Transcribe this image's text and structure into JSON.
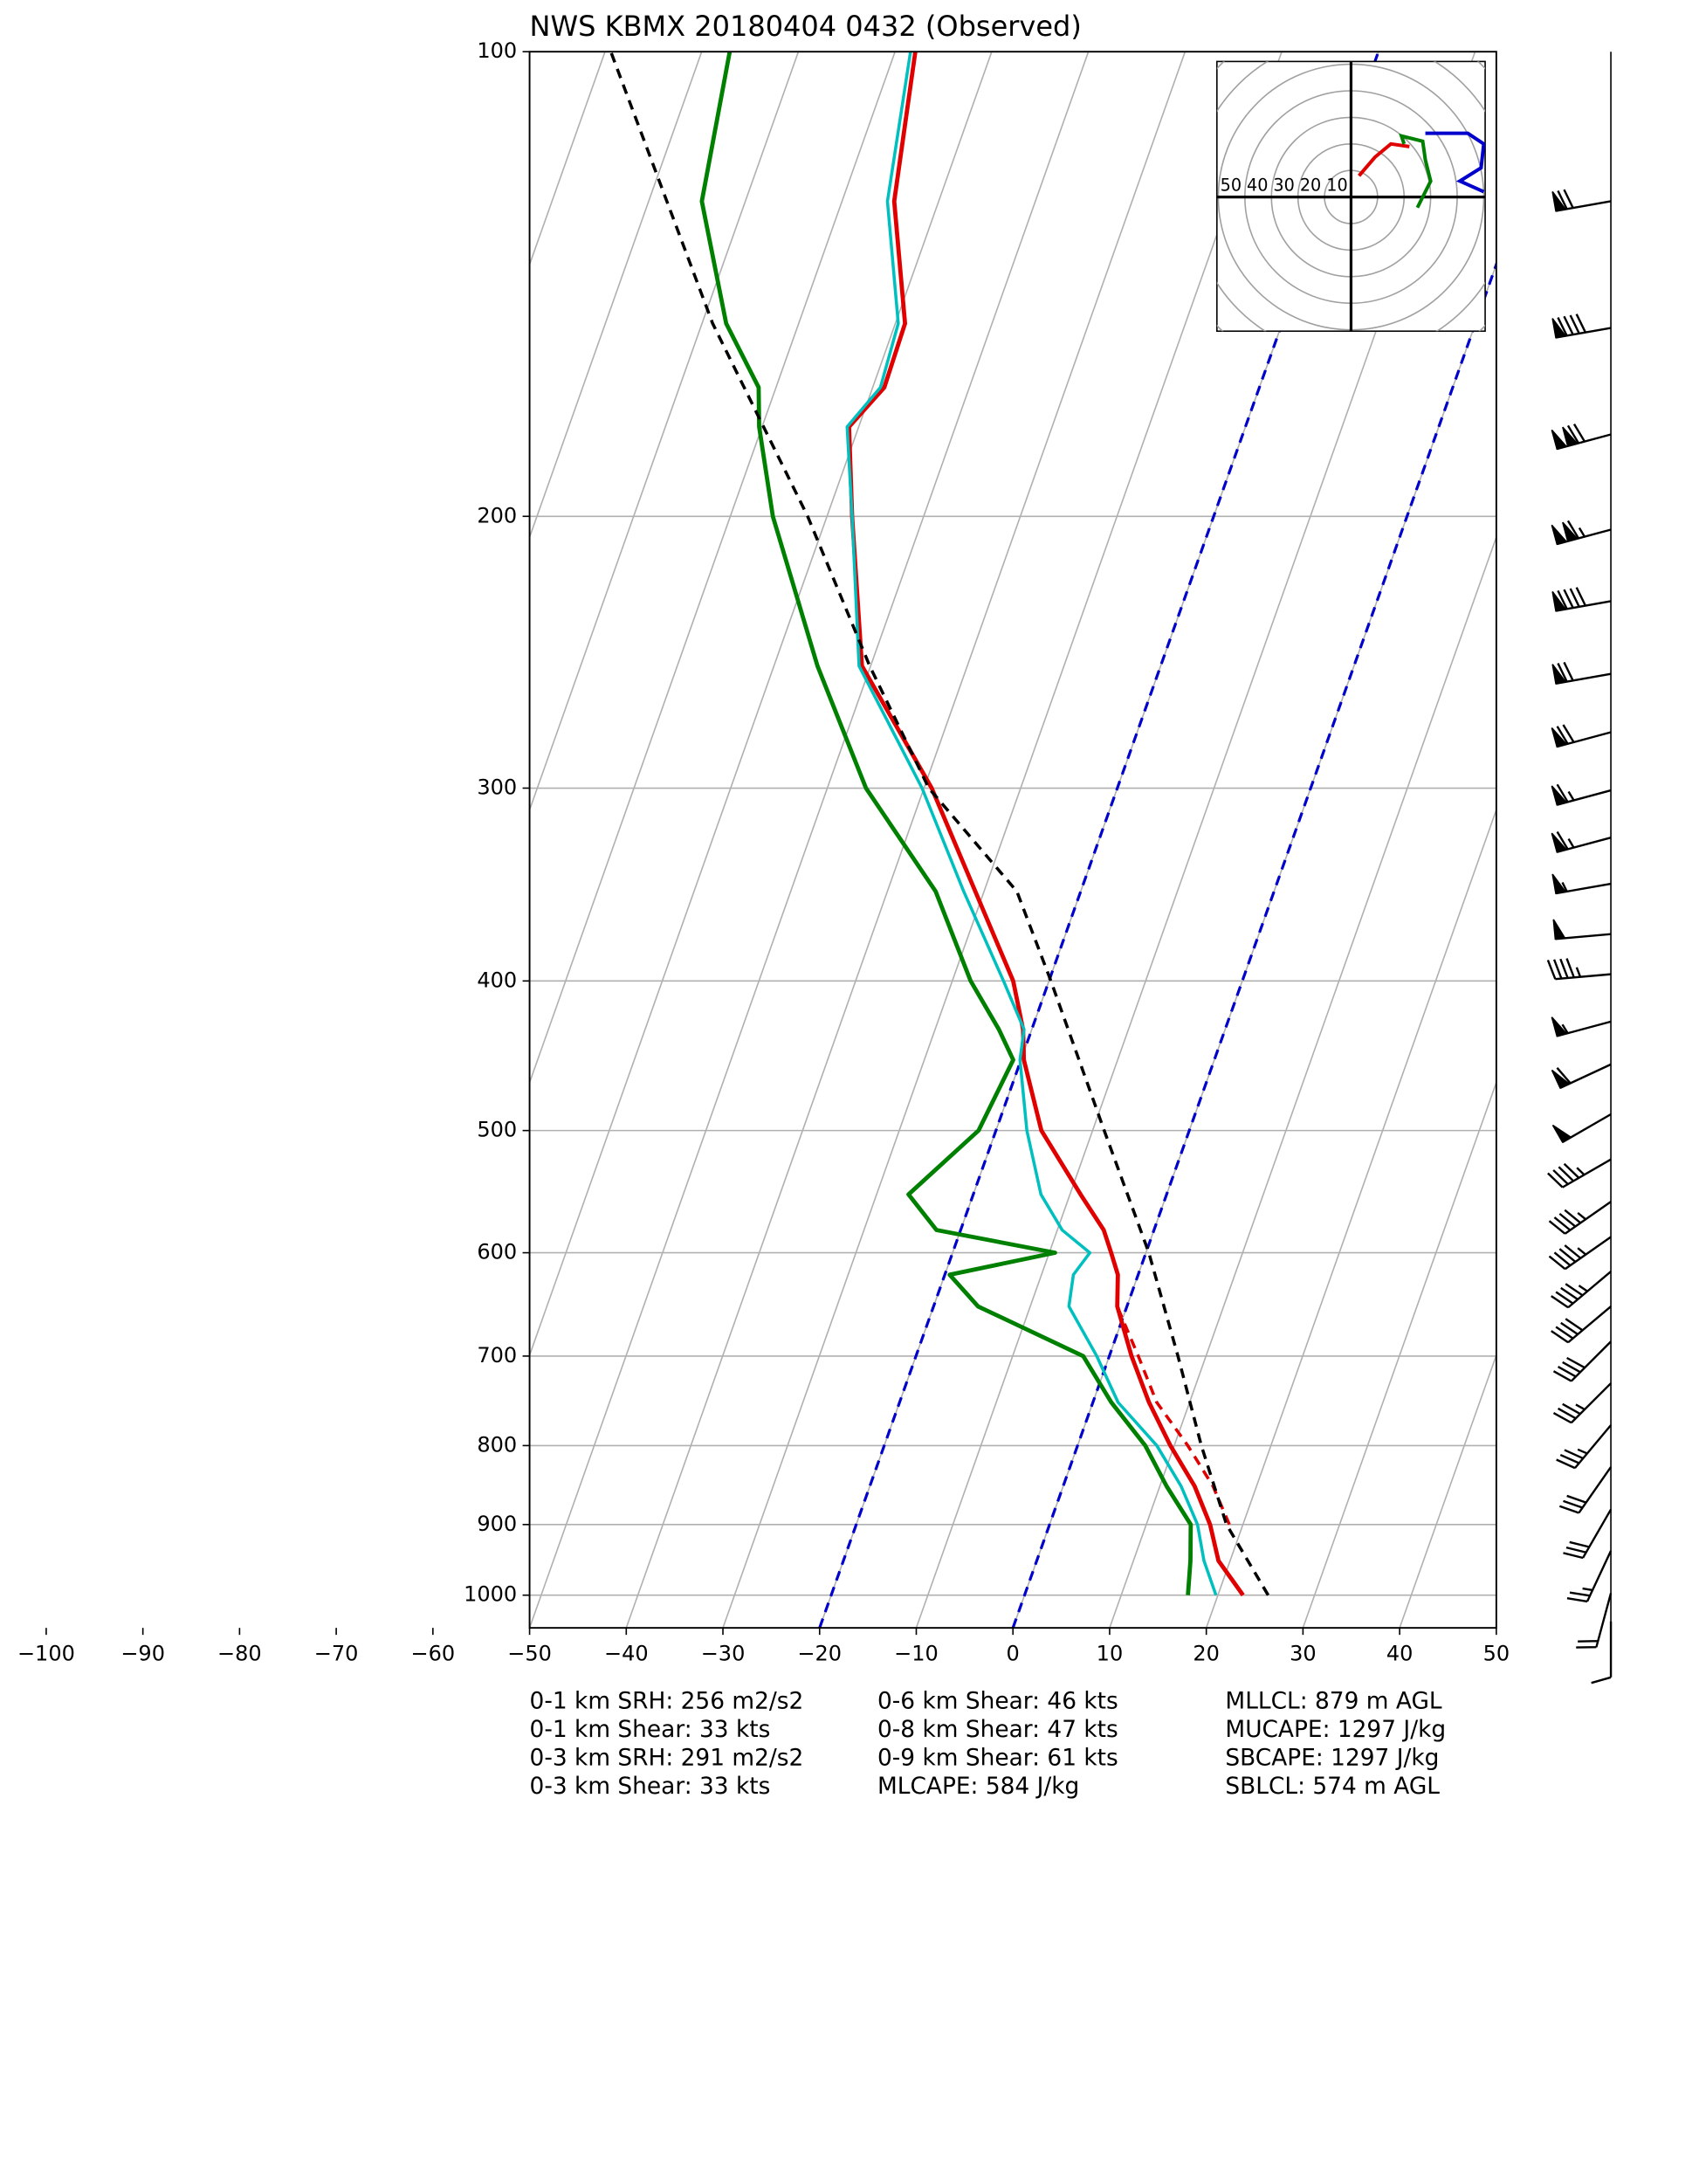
{
  "chart_data": {
    "type": "skewt",
    "title": "NWS KBMX 20180404 0432   (Observed)",
    "xlim": [
      -50,
      50
    ],
    "ylim": [
      1050,
      100
    ],
    "log_y": true,
    "grid": true,
    "xticks": [
      {
        "value": -100,
        "label": "−100"
      },
      {
        "value": -90,
        "label": "−90"
      },
      {
        "value": -80,
        "label": "−80"
      },
      {
        "value": -70,
        "label": "−70"
      },
      {
        "value": -60,
        "label": "−60"
      },
      {
        "value": -50,
        "label": "−50"
      },
      {
        "value": -40,
        "label": "−40"
      },
      {
        "value": -30,
        "label": "−30"
      },
      {
        "value": -20,
        "label": "−20"
      },
      {
        "value": -10,
        "label": "−10"
      },
      0,
      10,
      20,
      30,
      40,
      50
    ],
    "yticks": [
      100,
      200,
      300,
      400,
      500,
      600,
      700,
      800,
      900,
      1000
    ],
    "highlight_isotherms": {
      "color": "#0000cc",
      "values": [
        -20,
        0
      ]
    },
    "series": [
      {
        "color": "#e00000",
        "width": 3,
        "dash": false,
        "pressure": [
          1000,
          950,
          900,
          850,
          800,
          750,
          700,
          650,
          620,
          600,
          580,
          550,
          500,
          450,
          430,
          400,
          350,
          300,
          250,
          200,
          175,
          165,
          150,
          125,
          100
        ],
        "values": [
          22.6,
          18.8,
          16.6,
          13.6,
          9.6,
          5.8,
          2.3,
          -1,
          -2.1,
          -3.6,
          -5.2,
          -8.9,
          -15.3,
          -19.7,
          -20.9,
          -23.7,
          -30.9,
          -39.2,
          -50.9,
          -57.4,
          -61,
          -58.8,
          -59,
          -64.6,
          -67.9
        ]
      },
      {
        "color": "#00bfbf",
        "width": 2.2,
        "dash": false,
        "pressure": [
          1000,
          950,
          900,
          850,
          800,
          750,
          700,
          650,
          620,
          600,
          580,
          550,
          500,
          450,
          430,
          400,
          350,
          300,
          250,
          200,
          175,
          165,
          150,
          125,
          100
        ],
        "values": [
          19.8,
          17.3,
          15.3,
          12.2,
          8.2,
          2.6,
          -1.3,
          -6,
          -6.7,
          -5.8,
          -9.5,
          -13,
          -16.8,
          -20.1,
          -20.8,
          -24.7,
          -32.1,
          -40.2,
          -51.2,
          -57.4,
          -61.2,
          -59.2,
          -59.7,
          -65.3,
          -68.4
        ]
      },
      {
        "color": "#008000",
        "width": 3,
        "dash": false,
        "pressure": [
          1000,
          950,
          900,
          850,
          800,
          750,
          700,
          650,
          620,
          600,
          580,
          550,
          500,
          450,
          430,
          400,
          350,
          300,
          250,
          200,
          175,
          165,
          150,
          125,
          100
        ],
        "values": [
          16.9,
          15.9,
          14.6,
          10.7,
          7,
          1.9,
          -2.7,
          -15.4,
          -19.5,
          -9.4,
          -22.5,
          -26.7,
          -21.8,
          -20.8,
          -23.4,
          -28.1,
          -35,
          -46,
          -55.5,
          -65.6,
          -70.3,
          -71.8,
          -77.5,
          -84.5,
          -87.1
        ]
      },
      {
        "color": "#e00000",
        "width": 2.2,
        "dash": true,
        "pressure": [
          900,
          850,
          800,
          750,
          700,
          650
        ],
        "values": [
          18.6,
          15.5,
          11.4,
          6.6,
          3,
          -1
        ]
      },
      {
        "color": "#000000",
        "width": 2.2,
        "dash": true,
        "pressure": [
          1000,
          900,
          800,
          700,
          600,
          500,
          400,
          350,
          300,
          250,
          200,
          150,
          100
        ],
        "values": [
          25.2,
          18.3,
          12.8,
          7.1,
          0.3,
          -8.8,
          -19.8,
          -26.6,
          -39.5,
          -50.1,
          -62,
          -78.9,
          -99.4
        ]
      }
    ],
    "hodograph": {
      "rings": [
        10,
        20,
        30,
        40,
        50,
        60,
        70,
        80
      ],
      "ring_labels": [
        50,
        40,
        30,
        20,
        10
      ],
      "segments": [
        {
          "color": "#e00000",
          "u": [
            3,
            9,
            15,
            22
          ],
          "v": [
            8,
            15,
            20,
            19
          ]
        },
        {
          "color": "#008000",
          "u": [
            20,
            19,
            27,
            28,
            30,
            25
          ],
          "v": [
            20,
            23,
            21,
            14,
            6,
            -4
          ]
        },
        {
          "color": "#0000cc",
          "u": [
            28,
            44,
            50,
            49,
            41,
            50
          ],
          "v": [
            24,
            24,
            20,
            11,
            6,
            2
          ]
        }
      ]
    },
    "wind_barbs": {
      "pressure": [
        125,
        151,
        177,
        204,
        227,
        253,
        276,
        301,
        323,
        346,
        373,
        396,
        425,
        453,
        488,
        522,
        556,
        586,
        617,
        650,
        685,
        729,
        776,
        826,
        880,
        936,
        997,
        1040
      ],
      "speed": [
        70,
        90,
        120,
        115,
        90,
        70,
        70,
        65,
        65,
        55,
        50,
        45,
        55,
        60,
        50,
        45,
        45,
        45,
        45,
        40,
        40,
        35,
        35,
        30,
        30,
        25,
        20,
        10
      ],
      "direction": [
        260,
        260,
        255,
        255,
        260,
        260,
        255,
        255,
        255,
        260,
        265,
        265,
        255,
        245,
        240,
        240,
        235,
        235,
        230,
        230,
        225,
        225,
        220,
        215,
        210,
        205,
        195,
        180
      ]
    },
    "annotations": [
      [
        "0-1 km SRH: 256 m2/s2",
        "0-1 km Shear: 33 kts",
        "0-3 km SRH: 291 m2/s2",
        "0-3 km Shear: 33 kts"
      ],
      [
        "0-6 km Shear: 46 kts",
        "0-8 km Shear: 47 kts",
        "0-9 km Shear: 61 kts",
        "MLCAPE: 584 J/kg"
      ],
      [
        "MLLCL: 879 m AGL",
        "MUCAPE: 1297 J/kg",
        "SBCAPE: 1297 J/kg",
        "SBLCL: 574 m AGL"
      ]
    ]
  }
}
